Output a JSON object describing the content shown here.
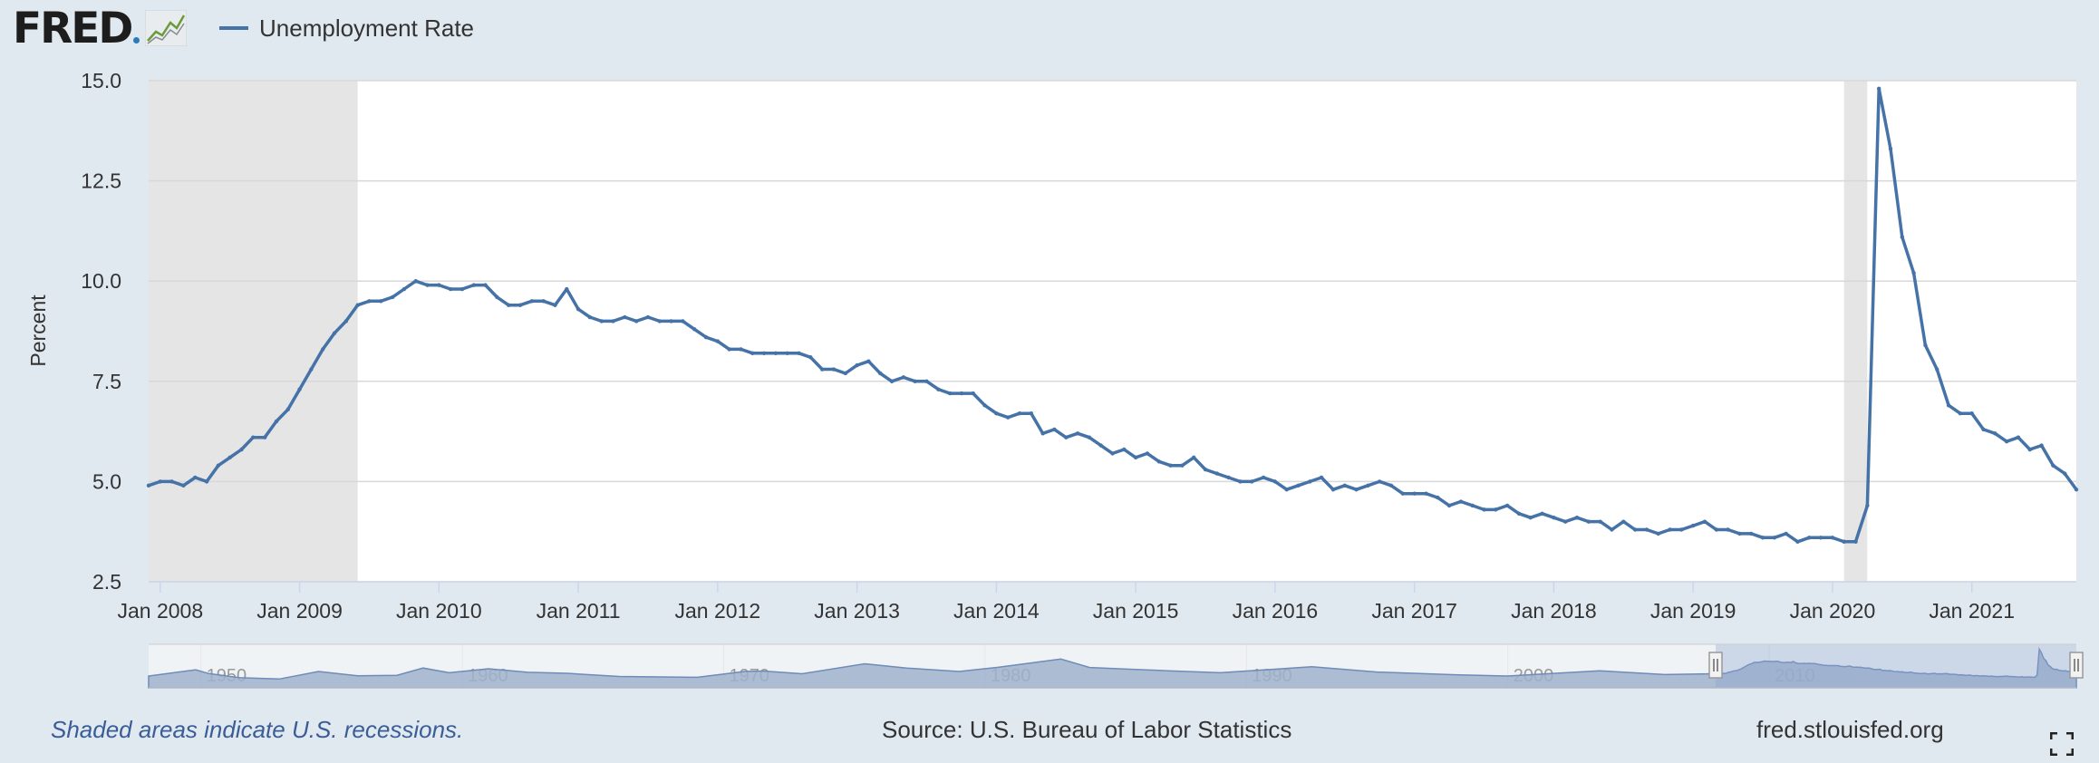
{
  "header": {
    "logo_text": "FRED",
    "legend_label": "Unemployment Rate"
  },
  "colors": {
    "background": "#e1e9f0",
    "plot_background": "#ffffff",
    "series": "#4572a7",
    "recession": "#e5e5e5",
    "grid": "#d8d8d8",
    "navigator_fill": "#9fb1cc",
    "navigator_window": "#b8c6de"
  },
  "chart_data": {
    "type": "line",
    "title": "",
    "xlabel": "",
    "ylabel": "Percent",
    "y_ticks": [
      "2.5",
      "5.0",
      "7.5",
      "10.0",
      "12.5",
      "15.0"
    ],
    "ylim": [
      2.5,
      15
    ],
    "x_ticks": [
      "Jan 2008",
      "Jan 2009",
      "Jan 2010",
      "Jan 2011",
      "Jan 2012",
      "Jan 2013",
      "Jan 2014",
      "Jan 2015",
      "Jan 2016",
      "Jan 2017",
      "Jan 2018",
      "Jan 2019",
      "Jan 2020",
      "Jan 2021"
    ],
    "recessions": [
      {
        "start": "2007-12",
        "end": "2009-06"
      },
      {
        "start": "2020-02",
        "end": "2020-04"
      }
    ],
    "series": [
      {
        "name": "Unemployment Rate",
        "start": "2007-12",
        "frequency": "monthly",
        "values": [
          4.9,
          5.0,
          5.0,
          4.9,
          5.1,
          5.0,
          5.4,
          5.6,
          5.8,
          6.1,
          6.1,
          6.5,
          6.8,
          7.3,
          7.8,
          8.3,
          8.7,
          9.0,
          9.4,
          9.5,
          9.5,
          9.6,
          9.8,
          10.0,
          9.9,
          9.9,
          9.8,
          9.8,
          9.9,
          9.9,
          9.6,
          9.4,
          9.4,
          9.5,
          9.5,
          9.4,
          9.8,
          9.3,
          9.1,
          9.0,
          9.0,
          9.1,
          9.0,
          9.1,
          9.0,
          9.0,
          9.0,
          8.8,
          8.6,
          8.5,
          8.3,
          8.3,
          8.2,
          8.2,
          8.2,
          8.2,
          8.2,
          8.1,
          7.8,
          7.8,
          7.7,
          7.9,
          8.0,
          7.7,
          7.5,
          7.6,
          7.5,
          7.5,
          7.3,
          7.2,
          7.2,
          7.2,
          6.9,
          6.7,
          6.6,
          6.7,
          6.7,
          6.2,
          6.3,
          6.1,
          6.2,
          6.1,
          5.9,
          5.7,
          5.8,
          5.6,
          5.7,
          5.5,
          5.4,
          5.4,
          5.6,
          5.3,
          5.2,
          5.1,
          5.0,
          5.0,
          5.1,
          5.0,
          4.8,
          4.9,
          5.0,
          5.1,
          4.8,
          4.9,
          4.8,
          4.9,
          5.0,
          4.9,
          4.7,
          4.7,
          4.7,
          4.6,
          4.4,
          4.5,
          4.4,
          4.3,
          4.3,
          4.4,
          4.2,
          4.1,
          4.2,
          4.1,
          4.0,
          4.1,
          4.0,
          4.0,
          3.8,
          4.0,
          3.8,
          3.8,
          3.7,
          3.8,
          3.8,
          3.9,
          4.0,
          3.8,
          3.8,
          3.7,
          3.7,
          3.6,
          3.6,
          3.7,
          3.5,
          3.6,
          3.6,
          3.6,
          3.5,
          3.5,
          4.4,
          14.8,
          13.3,
          11.1,
          10.2,
          8.4,
          7.8,
          6.9,
          6.7,
          6.7,
          6.3,
          6.2,
          6.0,
          6.1,
          5.8,
          5.9,
          5.4,
          5.2,
          4.8
        ]
      }
    ],
    "legend": "top-left"
  },
  "navigator": {
    "labels": [
      "1950",
      "1960",
      "1970",
      "1980",
      "1990",
      "2000",
      "2010"
    ]
  },
  "footer": {
    "note": "Shaded areas indicate U.S. recessions.",
    "source": "Source: U.S. Bureau of Labor Statistics",
    "url": "fred.stlouisfed.org"
  }
}
